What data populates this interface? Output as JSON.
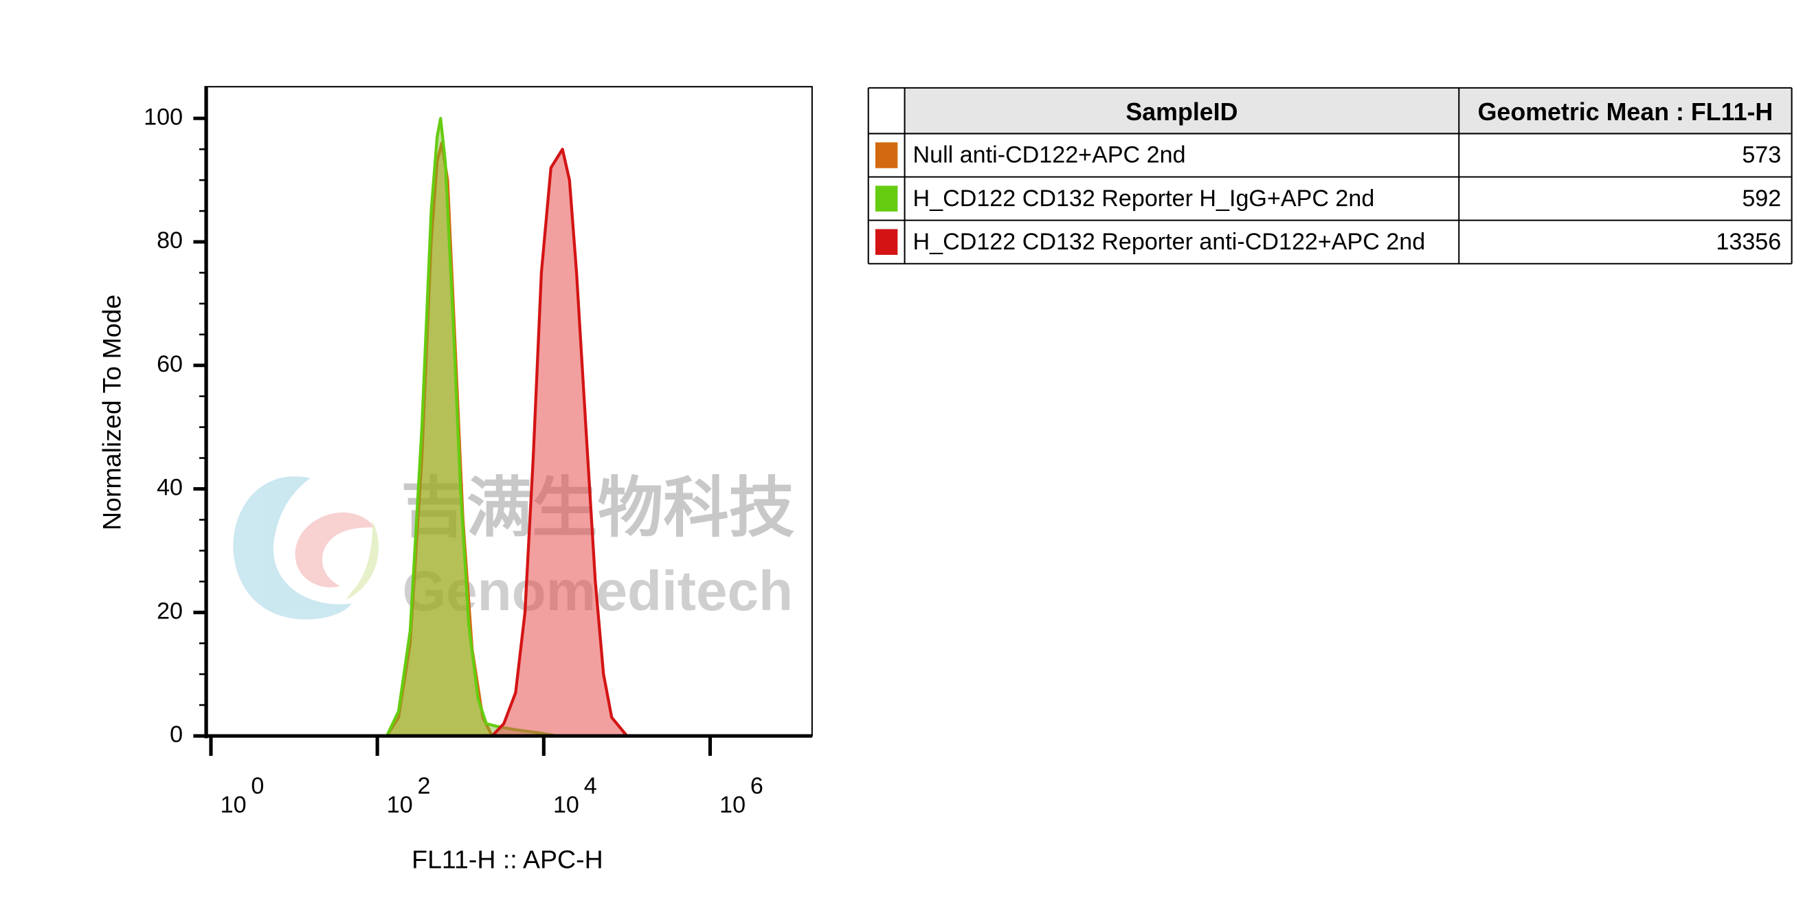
{
  "chart_data": {
    "type": "histogram-overlay",
    "ylabel": "Normalized To Mode",
    "xlabel": "FL11-H :: APC-H",
    "xscale": "log",
    "xlim": [
      1,
      16000000
    ],
    "ylim": [
      0,
      100
    ],
    "yticks": [
      0,
      20,
      40,
      60,
      80,
      100
    ],
    "yminorticks": [
      5,
      10,
      15,
      25,
      30,
      35,
      45,
      50,
      55,
      65,
      70,
      75,
      85,
      90,
      95
    ],
    "xticks": [
      {
        "value": 1,
        "label": "10",
        "exponent": "0"
      },
      {
        "value": 100,
        "label": "10",
        "exponent": "2"
      },
      {
        "value": 10000,
        "label": "10",
        "exponent": "4"
      },
      {
        "value": 1000000,
        "label": "10",
        "exponent": "6"
      }
    ],
    "table_headers": [
      "SampleID",
      "Geometric Mean : FL11-H"
    ],
    "watermark": {
      "text_cn": "吉满生物科技",
      "text_en": "Genomeditech"
    },
    "series": [
      {
        "name": "Null anti-CD122+APC 2nd",
        "color": "#d46a0f",
        "fill": "rgba(212,160,20,0.55)",
        "geometric_mean": 573,
        "x": [
          1,
          130,
          180,
          248,
          343,
          444,
          523,
          595,
          700,
          850,
          1070,
          1380,
          1850,
          2400,
          16000000
        ],
        "values": [
          0,
          0,
          3,
          15,
          45,
          80,
          93,
          96,
          90,
          65,
          35,
          14,
          3,
          0,
          0
        ]
      },
      {
        "name": "H_CD122 CD132 Reporter H_IgG+APC 2nd",
        "color": "#66cc11",
        "fill": "rgba(120,180,40,0.45)",
        "geometric_mean": 592,
        "x": [
          1,
          130,
          180,
          248,
          343,
          444,
          523,
          576,
          656,
          797,
          1000,
          1256,
          1625,
          2040,
          2825,
          4590,
          8790,
          14300,
          16000000
        ],
        "values": [
          0,
          0,
          4,
          17,
          50,
          85,
          97,
          100,
          93,
          70,
          40,
          18,
          6,
          2,
          1.5,
          1,
          0.5,
          0,
          0
        ]
      },
      {
        "name": "H_CD122 CD132 Reporter anti-CD122+APC 2nd",
        "color": "#d41414",
        "fill": "rgba(232,80,80,0.55)",
        "geometric_mean": 13356,
        "x": [
          1,
          2400,
          3320,
          4590,
          5950,
          7470,
          9370,
          12200,
          16800,
          20400,
          24800,
          32100,
          41700,
          52300,
          65600,
          100000,
          16000000
        ],
        "values": [
          0,
          0,
          2,
          7,
          20,
          45,
          75,
          92,
          95,
          90,
          75,
          50,
          25,
          10,
          3,
          0,
          0
        ]
      }
    ]
  }
}
